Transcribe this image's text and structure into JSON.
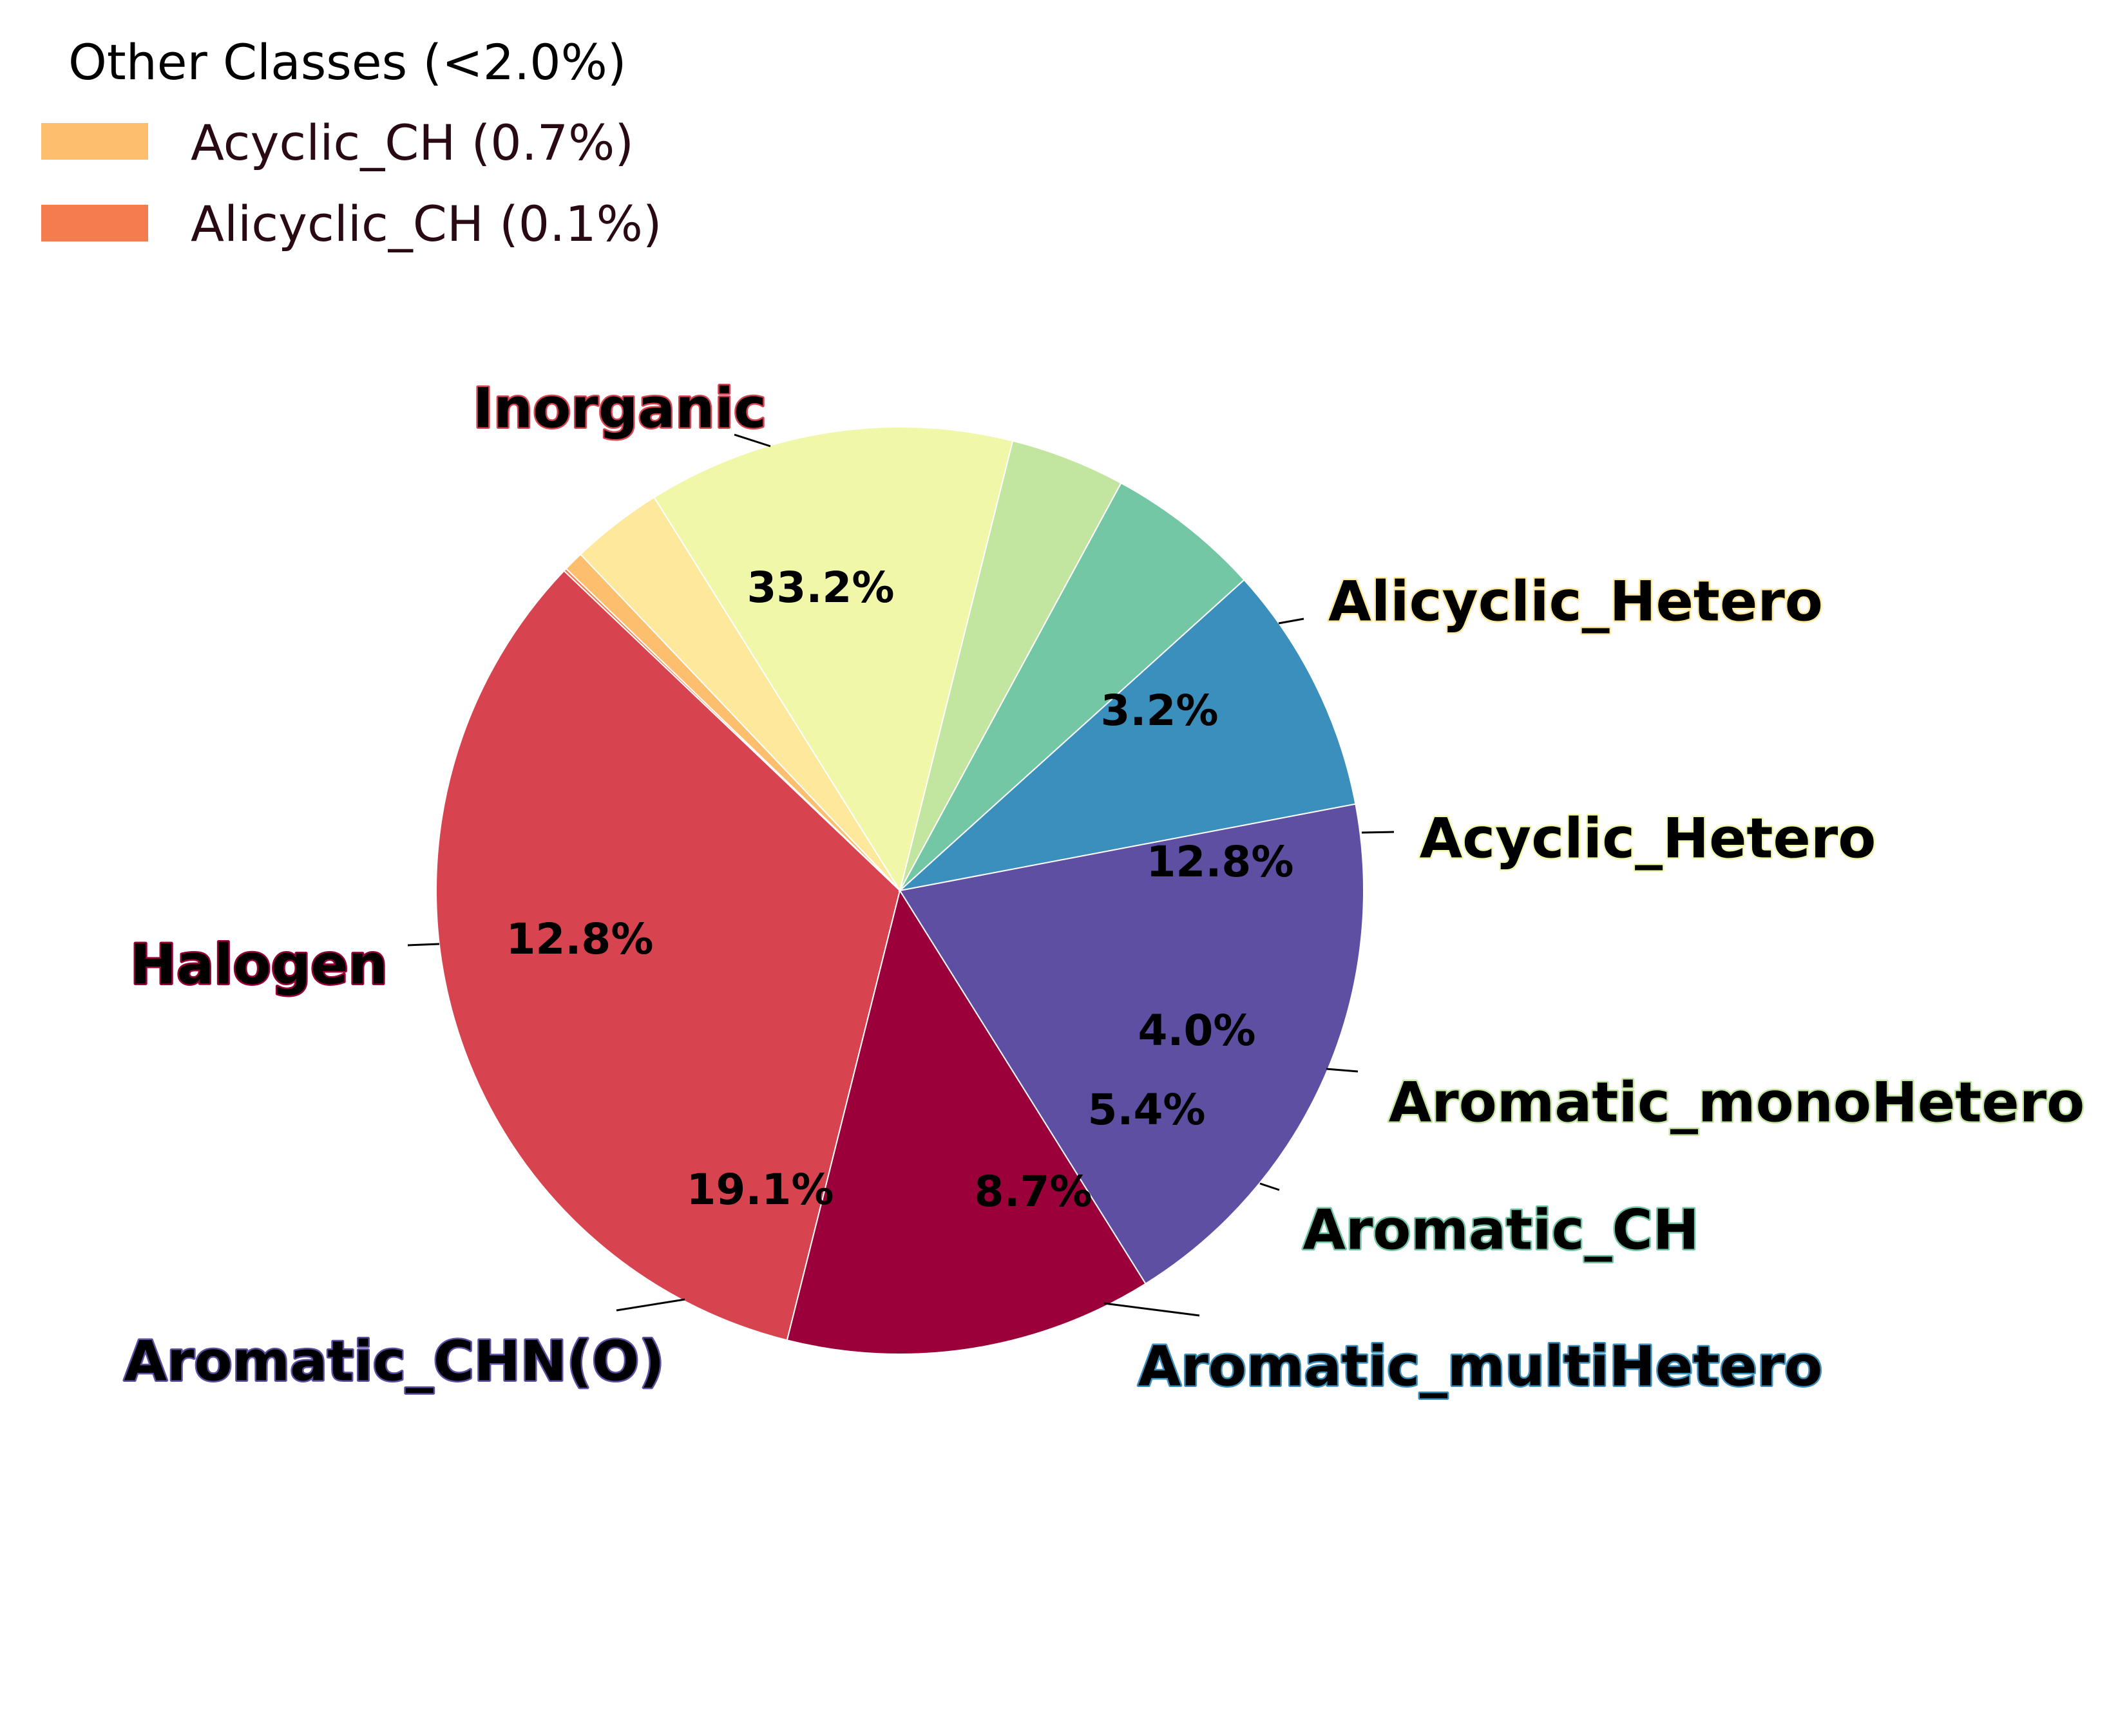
{
  "chart_data": {
    "type": "pie",
    "title": "",
    "slices": [
      {
        "label": "Inorganic",
        "value": 33.2,
        "pct_label": "33.2%",
        "color": "#d7434f",
        "show_label": true
      },
      {
        "label": "Halogen",
        "value": 12.8,
        "pct_label": "12.8%",
        "color": "#9b003b",
        "show_label": true
      },
      {
        "label": "Aromatic_CHN(O)",
        "value": 19.1,
        "pct_label": "19.1%",
        "color": "#5e4fa2",
        "show_label": true
      },
      {
        "label": "Aromatic_multiHetero",
        "value": 8.7,
        "pct_label": "8.7%",
        "color": "#3a8fbc",
        "show_label": true
      },
      {
        "label": "Aromatic_CH",
        "value": 5.4,
        "pct_label": "5.4%",
        "color": "#74c7a4",
        "show_label": true
      },
      {
        "label": "Aromatic_monoHetero",
        "value": 4.0,
        "pct_label": "4.0%",
        "color": "#c2e59f",
        "show_label": true
      },
      {
        "label": "Acyclic_Hetero",
        "value": 12.8,
        "pct_label": "12.8%",
        "color": "#f1f7a9",
        "show_label": true
      },
      {
        "label": "Alicyclic_Hetero",
        "value": 3.2,
        "pct_label": "3.2%",
        "color": "#fde89b",
        "show_label": true
      },
      {
        "label": "Acyclic_CH",
        "value": 0.7,
        "pct_label": "",
        "color": "#fdbe6e",
        "show_label": false
      },
      {
        "label": "Alicyclic_CH",
        "value": 0.1,
        "pct_label": "",
        "color": "#f57c4e",
        "show_label": false
      }
    ],
    "legend": {
      "title": "Other Classes (<2.0%)",
      "placement": "top-left",
      "entries": [
        {
          "label": "Acyclic_CH (0.7%)",
          "color": "#fdbe6e"
        },
        {
          "label": "Alicyclic_CH (0.1%)",
          "color": "#f57c4e"
        }
      ]
    }
  }
}
